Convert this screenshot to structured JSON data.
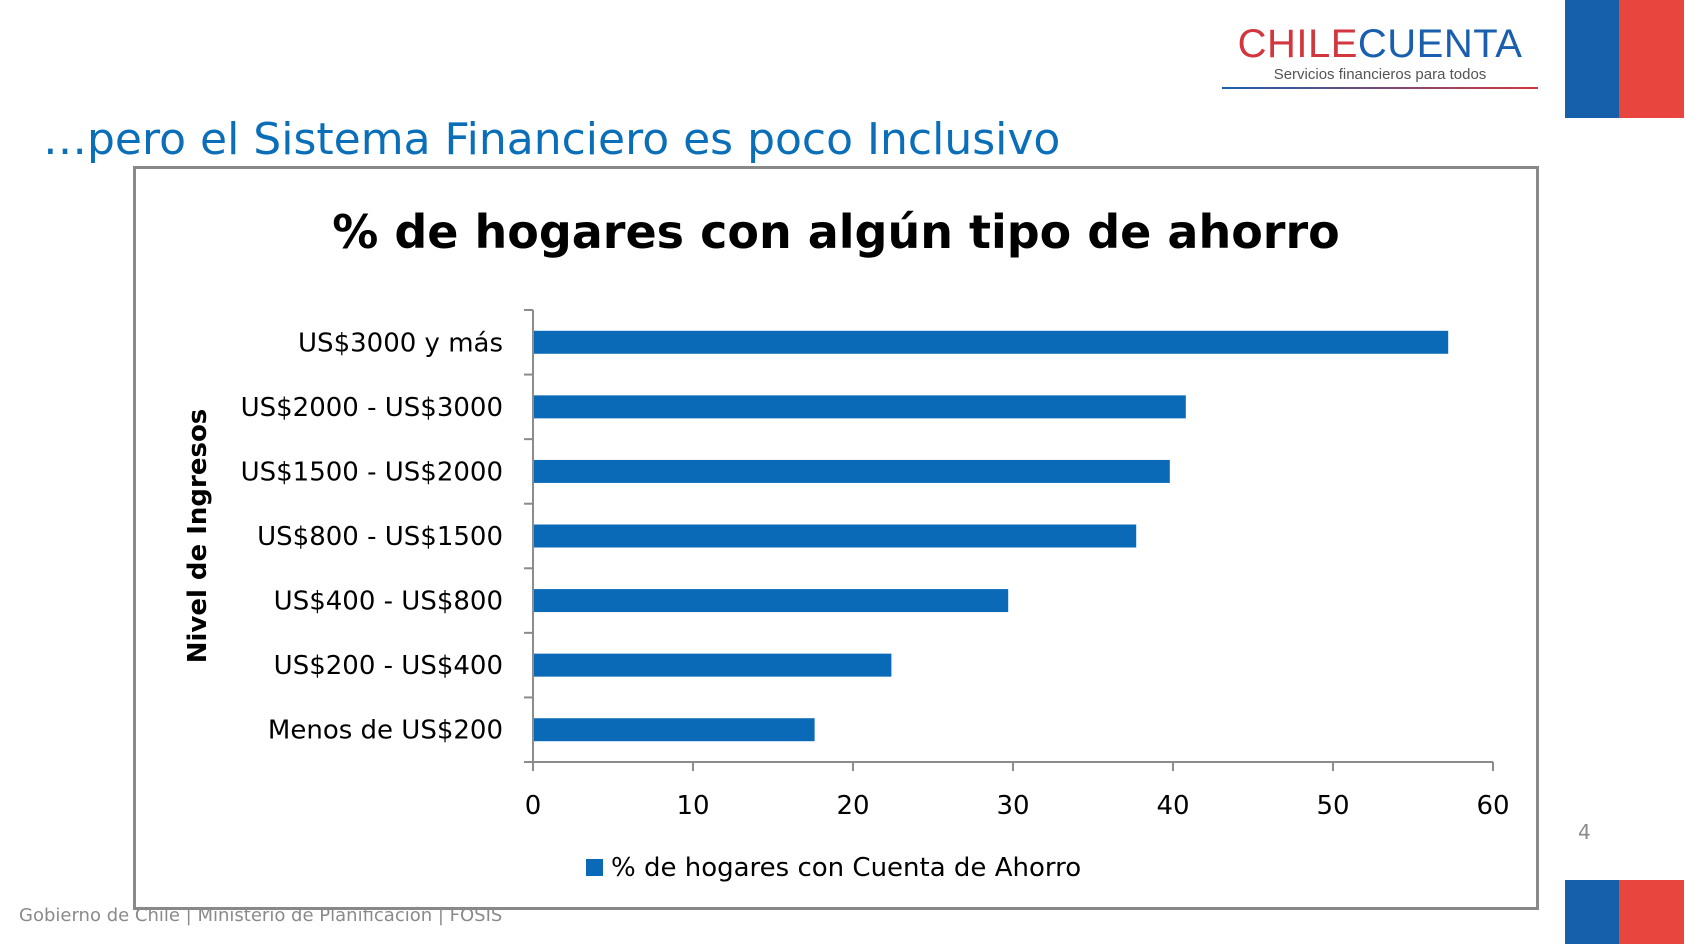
{
  "slide": {
    "title": "…pero el Sistema Financiero es poco Inclusivo",
    "page_number": "4",
    "footer": "Gobierno de Chile | Ministerio de Planificación | FOSIS",
    "title_color": "#0a6fb8"
  },
  "logo": {
    "part1": "CHILE",
    "part2": "CUENTA",
    "tagline": "Servicios financieros para todos",
    "color_red": "#d2373f",
    "color_blue": "#1a5fae"
  },
  "flag": {
    "blue": "#1560a8",
    "red": "#e8453f"
  },
  "chart_data": {
    "type": "bar",
    "orientation": "horizontal",
    "title": "% de hogares con algún tipo de ahorro",
    "ylabel": "Nivel de Ingresos",
    "xlabel": "",
    "categories": [
      "US$3000 y más",
      "US$2000 - US$3000",
      "US$1500 - US$2000",
      "US$800 - US$1500",
      "US$400 - US$800",
      "US$200 - US$400",
      "Menos de US$200"
    ],
    "series": [
      {
        "name": "% de hogares con Cuenta de Ahorro",
        "values": [
          57.2,
          40.8,
          39.8,
          37.7,
          29.7,
          22.4,
          17.6
        ],
        "color": "#0a6ab7"
      }
    ],
    "xlim": [
      0,
      60
    ],
    "xticks": [
      0,
      10,
      20,
      30,
      40,
      50,
      60
    ],
    "legend_position": "bottom",
    "grid": false
  }
}
